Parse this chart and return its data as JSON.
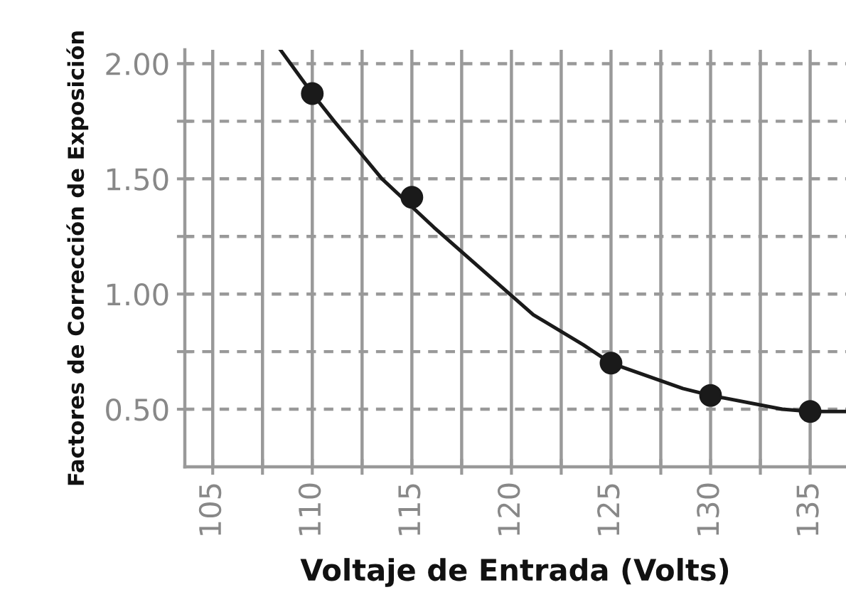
{
  "chart_data": {
    "type": "line",
    "xlabel": "Voltaje de Entrada (Volts)",
    "ylabel": "Factores de Corrección de Exposición",
    "series": [
      {
        "color": "#1a1a1a",
        "marker": "none",
        "line_style": "solid",
        "x": [
          108.4,
          110,
          111.1,
          113.5,
          116.1,
          118.6,
          121.1,
          123.6,
          125,
          128.6,
          130,
          133.6,
          135,
          136.8
        ],
        "values": [
          2.06,
          1.87,
          1.75,
          1.5,
          1.29,
          1.1,
          0.91,
          0.78,
          0.7,
          0.59,
          0.56,
          0.5,
          0.49,
          0.49
        ]
      },
      {
        "type": "scatter",
        "color": "#1a1a1a",
        "marker": "circle",
        "x": [
          110,
          115,
          125,
          130,
          135
        ],
        "values": [
          1.87,
          1.42,
          0.7,
          0.56,
          0.49
        ]
      }
    ],
    "xlim": [
      103.6,
      136.8
    ],
    "xticks": [
      105,
      {
        "value": 107.5,
        "label": null
      },
      110,
      {
        "value": 112.5,
        "label": null
      },
      115,
      {
        "value": 117.5,
        "label": null
      },
      120,
      {
        "value": 122.5,
        "label": null
      },
      125,
      {
        "value": 127.5,
        "label": null
      },
      130,
      {
        "value": 132.5,
        "label": null
      },
      135
    ],
    "ylim": [
      0.25,
      2.06
    ],
    "yticks": [
      {
        "value": 0.5,
        "label": "0.50"
      },
      {
        "value": 0.75,
        "label": null
      },
      {
        "value": 1.0,
        "label": "1.00"
      },
      {
        "value": 1.25,
        "label": null
      },
      {
        "value": 1.5,
        "label": "1.50"
      },
      {
        "value": 1.75,
        "label": null
      },
      {
        "value": 2.0,
        "label": "2.00"
      }
    ],
    "grid": true
  }
}
